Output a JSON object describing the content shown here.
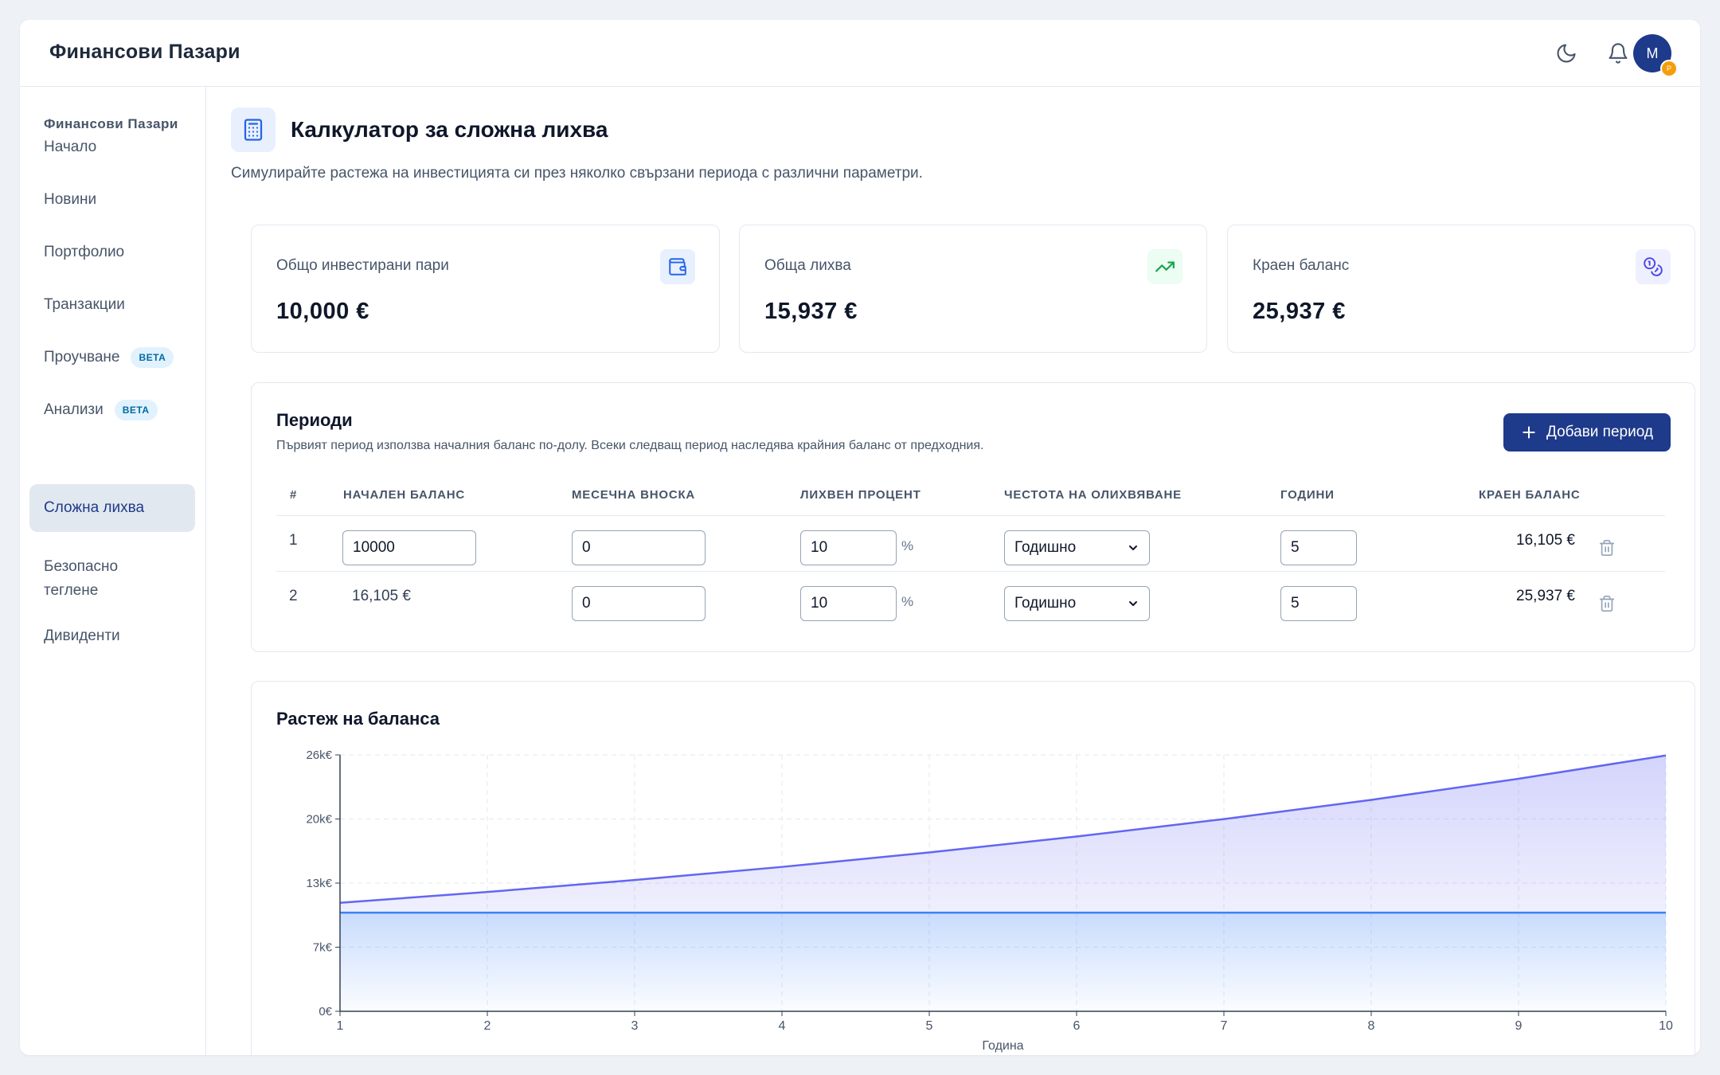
{
  "app": {
    "brand": "Финансови Пазари"
  },
  "topbar": {
    "avatar_initial": "М",
    "avatar_badge": "P",
    "theme_icon": "moon-icon",
    "notification_icon": "bell-icon"
  },
  "sidebar": {
    "heading": "Финансови Пазари",
    "items": [
      {
        "label": "Начало"
      },
      {
        "label": "Новини"
      },
      {
        "label": "Портфолио"
      },
      {
        "label": "Транзакции"
      },
      {
        "label": "Проучване",
        "badge": "BETA"
      },
      {
        "label": "Анализи",
        "badge": "BETA"
      },
      {
        "label": "Сложна лихва",
        "active": true
      },
      {
        "label": "Безопасно\nтеглене"
      },
      {
        "label": "Дивиденти"
      }
    ]
  },
  "page": {
    "title": "Калкулатор за сложна лихва",
    "subtitle": "Симулирайте растежа на инвестицията си през няколко свързани периода с различни параметри.",
    "title_icon": "calculator-icon"
  },
  "stats": [
    {
      "label": "Общо инвестирани пари",
      "value": "10,000 €",
      "icon": "wallet-icon",
      "color": "#2563eb"
    },
    {
      "label": "Обща лихва",
      "value": "15,937 €",
      "icon": "trending-up-icon",
      "color": "#16a34a"
    },
    {
      "label": "Краен баланс",
      "value": "25,937 €",
      "icon": "coins-icon",
      "color": "#4f46e5"
    }
  ],
  "periods": {
    "title": "Периоди",
    "subtitle": "Първият период използва началния баланс по-долу. Всеки следващ период наследява крайния баланс от предходния.",
    "add_button": "Добави период",
    "headers": {
      "index": "#",
      "start_balance": "НАЧАЛЕН БАЛАНС",
      "monthly": "МЕСЕЧНА ВНОСКА",
      "rate": "ЛИХВЕН ПРОЦЕНТ",
      "frequency": "ЧЕСТОТА НА ОЛИХВЯВАНЕ",
      "years": "ГОДИНИ",
      "end_balance": "КРАЕН БАЛАНС"
    },
    "percent_sign": "%",
    "rows": [
      {
        "index": "1",
        "start_balance": "10000",
        "monthly": "0",
        "rate": "10",
        "frequency": "Годишно",
        "years": "5",
        "end_balance": "16,105 €"
      },
      {
        "index": "2",
        "start_balance": "16,105 €",
        "monthly": "0",
        "rate": "10",
        "frequency": "Годишно",
        "years": "5",
        "end_balance": "25,937 €"
      }
    ]
  },
  "chart": {
    "title": "Растеж на баланса",
    "xlabel": "Година"
  },
  "chart_data": {
    "type": "area",
    "title": "Растеж на баланса",
    "xlabel": "Година",
    "ylabel": "",
    "x": [
      1,
      2,
      3,
      4,
      5,
      6,
      7,
      8,
      9,
      10
    ],
    "y_ticks": [
      {
        "value": 0,
        "label": "0€"
      },
      {
        "value": 6.5,
        "label": "7k€"
      },
      {
        "value": 13,
        "label": "13k€"
      },
      {
        "value": 19.5,
        "label": "20k€"
      },
      {
        "value": 26,
        "label": "26k€"
      }
    ],
    "ylim": [
      0,
      26
    ],
    "y_unit": "k€",
    "grid": true,
    "series": [
      {
        "values": [
          11.0,
          12.1,
          13.31,
          14.64,
          16.11,
          17.72,
          19.49,
          21.44,
          23.58,
          25.94
        ],
        "color": "#6366f1"
      },
      {
        "values": [
          10,
          10,
          10,
          10,
          10,
          10,
          10,
          10,
          10,
          10
        ],
        "color": "#3b82f6"
      }
    ]
  }
}
